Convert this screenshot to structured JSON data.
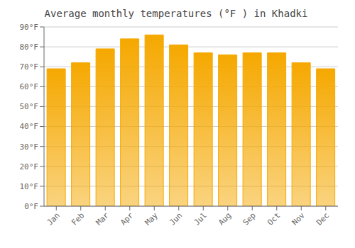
{
  "chart_data": {
    "type": "bar",
    "title": "Average monthly temperatures (°F ) in Khadki",
    "categories": [
      "Jan",
      "Feb",
      "Mar",
      "Apr",
      "May",
      "Jun",
      "Jul",
      "Aug",
      "Sep",
      "Oct",
      "Nov",
      "Dec"
    ],
    "values": [
      69,
      72,
      79,
      84,
      86,
      81,
      77,
      76,
      77,
      77,
      72,
      69
    ],
    "color": "#F5A800",
    "ylim": [
      0,
      90
    ],
    "yticks": [
      {
        "value": 0,
        "label": "0°F"
      },
      {
        "value": 10,
        "label": "10°F"
      },
      {
        "value": 20,
        "label": "20°F"
      },
      {
        "value": 30,
        "label": "30°F"
      },
      {
        "value": 40,
        "label": "40°F"
      },
      {
        "value": 50,
        "label": "50°F"
      },
      {
        "value": 60,
        "label": "60°F"
      },
      {
        "value": 70,
        "label": "70°F"
      },
      {
        "value": 80,
        "label": "80°F"
      },
      {
        "value": 90,
        "label": "90°F"
      }
    ],
    "grid": true
  }
}
